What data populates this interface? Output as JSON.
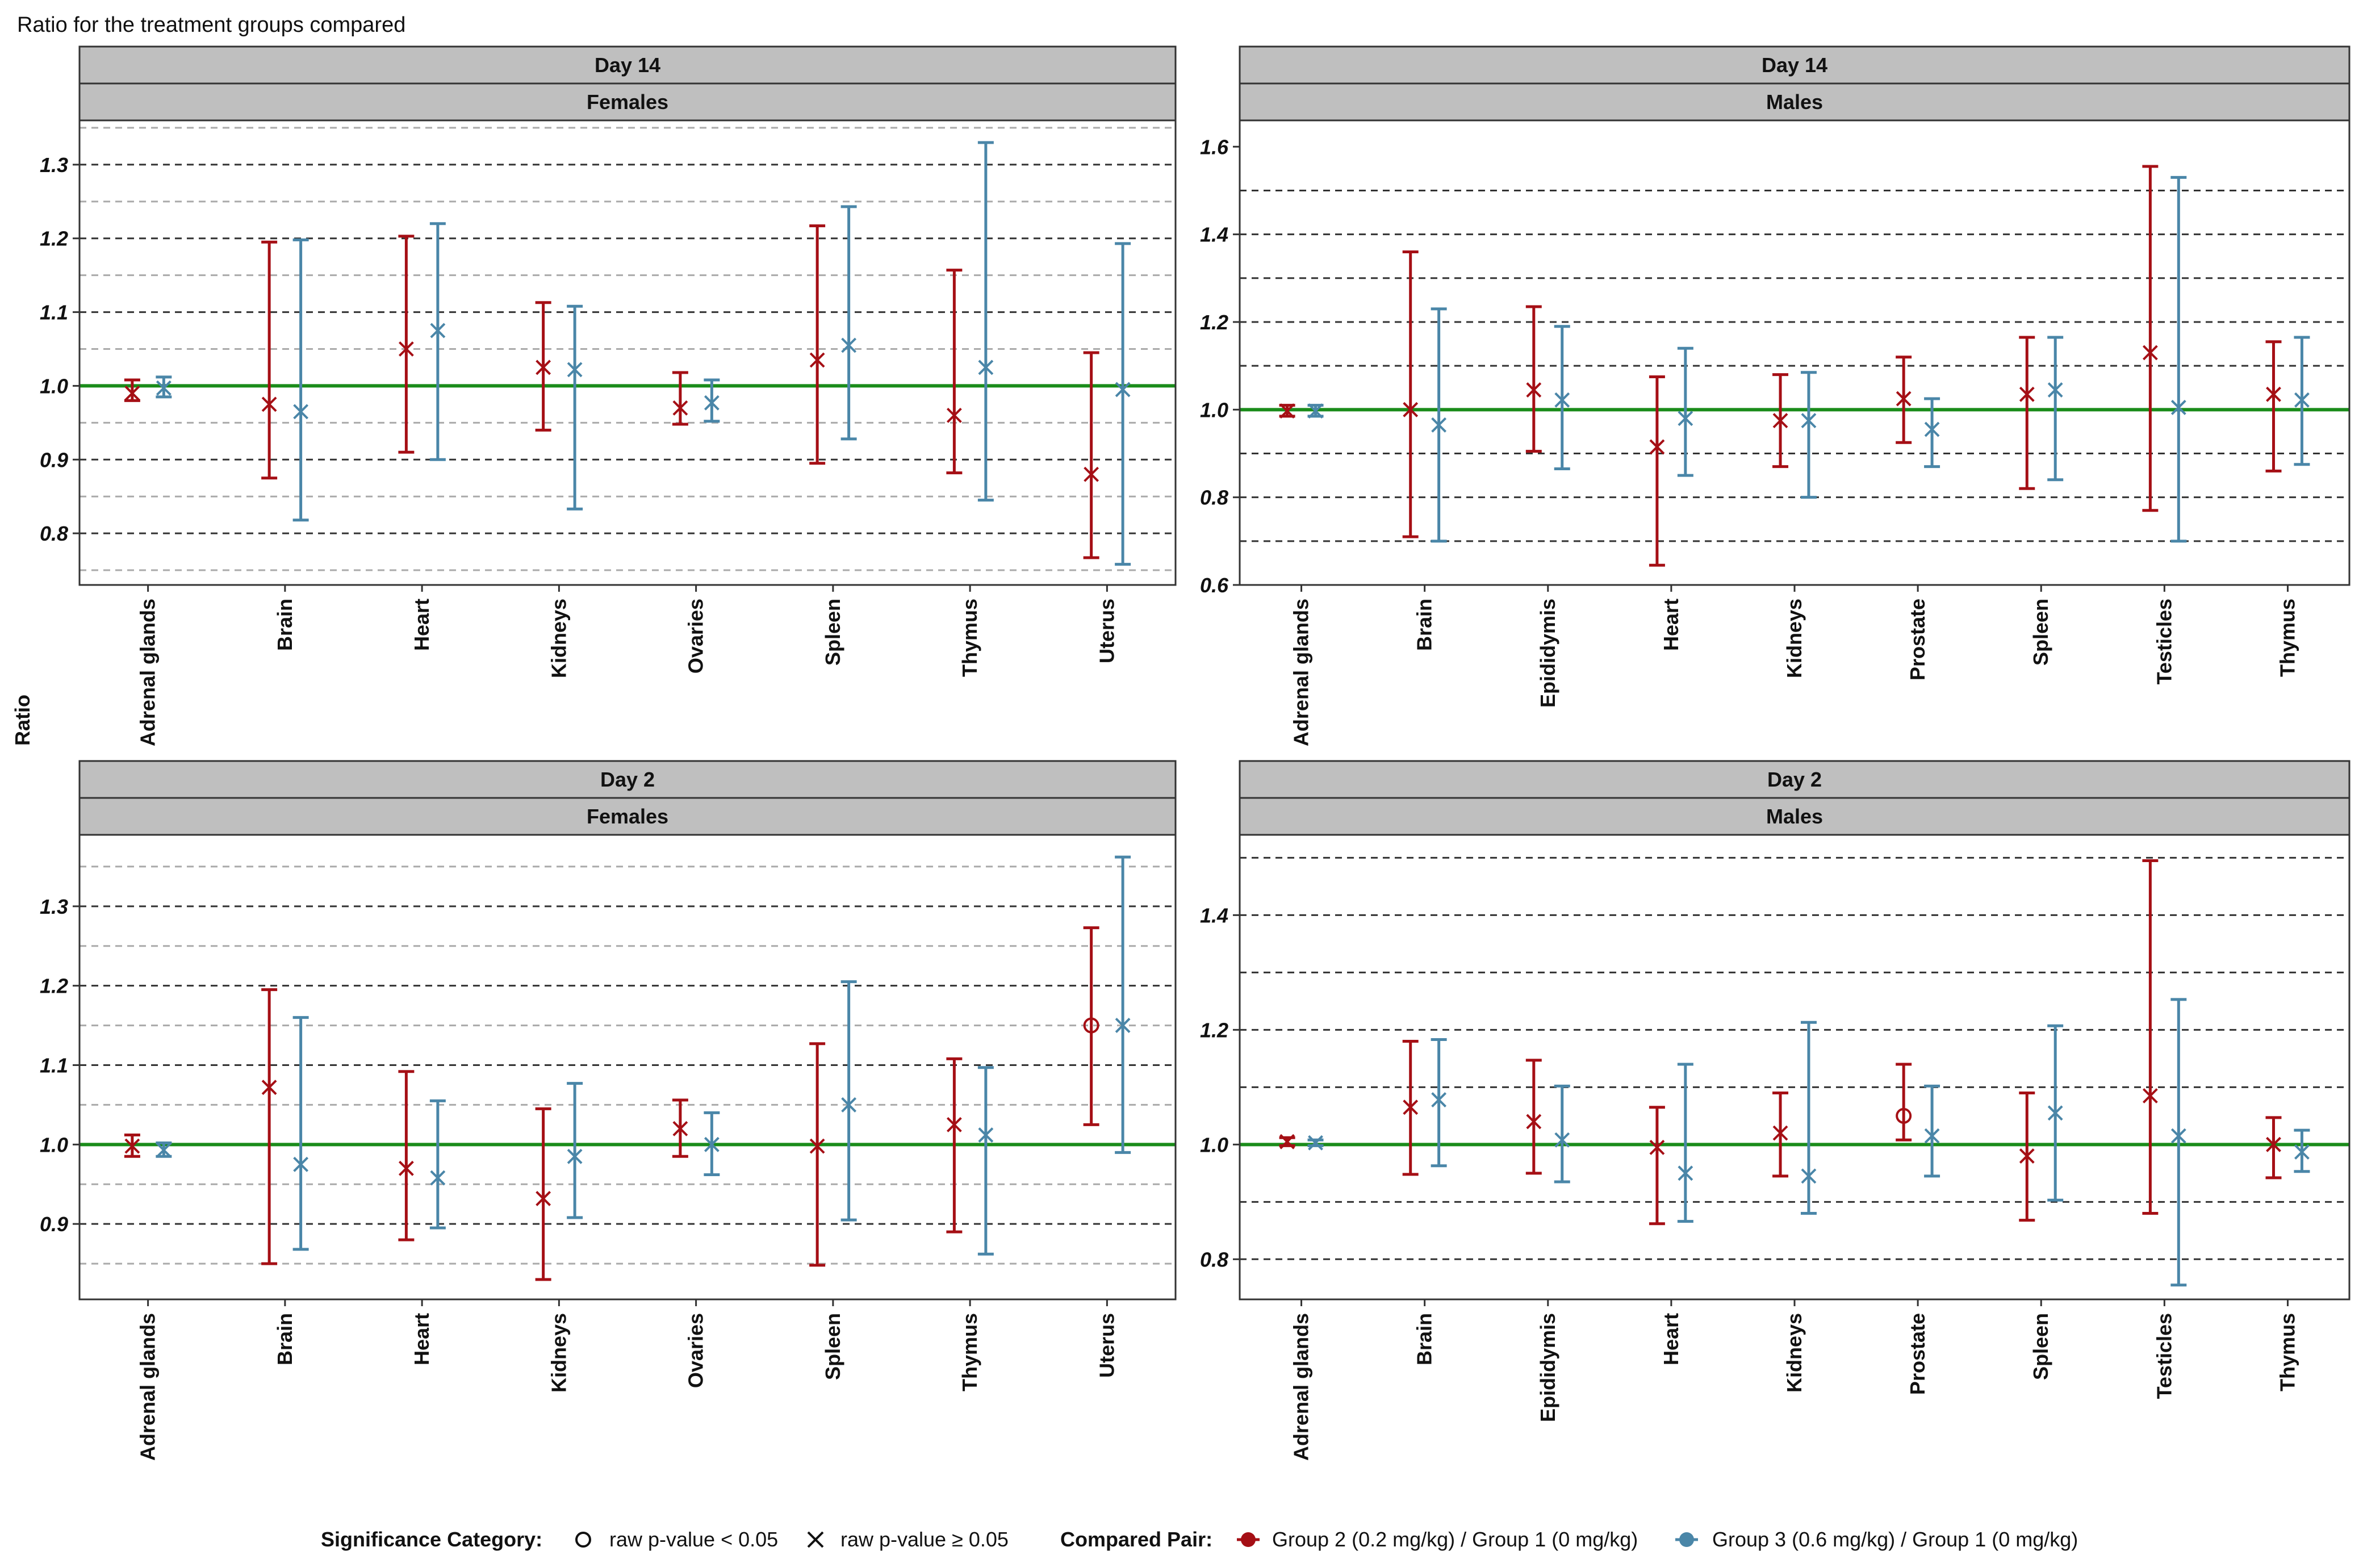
{
  "figure": {
    "title": "Ratio for the treatment groups compared",
    "ylabel": "Ratio",
    "reference_value": 1.0
  },
  "legend": {
    "significance_title": "Significance Category:",
    "sig_circle_label": "raw p-value < 0.05",
    "sig_cross_label": "raw p-value ≥ 0.05",
    "pair_title": "Compared Pair:",
    "pair_group2_label": "Group 2 (0.2 mg/kg) / Group 1 (0 mg/kg)",
    "pair_group3_label": "Group 3 (0.6 mg/kg) / Group 1 (0 mg/kg)"
  },
  "colors": {
    "group2": "#a50f15",
    "group3": "#4a86a8",
    "reference": "#1a8c1a",
    "strip": "#bfbfbf",
    "grid_major": "#333333",
    "grid_minor": "#aaaaaa"
  },
  "chart_data": [
    {
      "type": "errorbar",
      "panel": "top-left",
      "strip_top": "Day 14",
      "strip_bottom": "Females",
      "ylim": [
        0.73,
        1.36
      ],
      "yticks": [
        0.8,
        0.9,
        1.0,
        1.1,
        1.2,
        1.3
      ],
      "ytick_labels": [
        "0.8",
        "0.9",
        "1.0",
        "1.1",
        "1.2",
        "1.3"
      ],
      "dashed_lines": [
        0.75,
        0.8,
        0.85,
        0.9,
        0.95,
        1.05,
        1.1,
        1.15,
        1.2,
        1.25,
        1.3,
        1.35
      ],
      "categories": [
        "Adrenal glands",
        "Brain",
        "Heart",
        "Kidneys",
        "Ovaries",
        "Spleen",
        "Thymus",
        "Uterus"
      ],
      "series": [
        {
          "name": "Group 2 (0.2 mg/kg) / Group 1 (0 mg/kg)",
          "color_key": "group2",
          "values": [
            0.99,
            0.975,
            1.05,
            1.025,
            0.97,
            1.035,
            0.96,
            0.88
          ],
          "lower": [
            0.98,
            0.875,
            0.91,
            0.94,
            0.948,
            0.895,
            0.882,
            0.767
          ],
          "upper": [
            1.008,
            1.195,
            1.203,
            1.113,
            1.018,
            1.217,
            1.157,
            1.045
          ],
          "significant": [
            false,
            false,
            false,
            false,
            false,
            false,
            false,
            false
          ]
        },
        {
          "name": "Group 3 (0.6 mg/kg) / Group 1 (0 mg/kg)",
          "color_key": "group3",
          "values": [
            0.997,
            0.965,
            1.075,
            1.022,
            0.977,
            1.055,
            1.025,
            0.995
          ],
          "lower": [
            0.985,
            0.818,
            0.9,
            0.833,
            0.952,
            0.928,
            0.845,
            0.758
          ],
          "upper": [
            1.012,
            1.198,
            1.22,
            1.108,
            1.008,
            1.243,
            1.33,
            1.193
          ],
          "significant": [
            false,
            false,
            false,
            false,
            false,
            false,
            false,
            false
          ]
        }
      ]
    },
    {
      "type": "errorbar",
      "panel": "top-right",
      "strip_top": "Day 14",
      "strip_bottom": "Males",
      "ylim": [
        0.6,
        1.66
      ],
      "yticks": [
        0.6,
        0.8,
        1.0,
        1.2,
        1.4,
        1.6
      ],
      "ytick_labels": [
        "0.6",
        "0.8",
        "1.0",
        "1.2",
        "1.4",
        "1.6"
      ],
      "dashed_lines": [
        0.6,
        0.7,
        0.8,
        0.9,
        1.1,
        1.2,
        1.3,
        1.4,
        1.5
      ],
      "categories": [
        "Adrenal glands",
        "Brain",
        "Epididymis",
        "Heart",
        "Kidneys",
        "Prostate",
        "Spleen",
        "Testicles",
        "Thymus"
      ],
      "series": [
        {
          "name": "Group 2 (0.2 mg/kg) / Group 1 (0 mg/kg)",
          "color_key": "group2",
          "values": [
            0.997,
            1.0,
            1.045,
            0.915,
            0.975,
            1.025,
            1.035,
            1.13,
            1.035
          ],
          "lower": [
            0.985,
            0.71,
            0.905,
            0.645,
            0.87,
            0.925,
            0.82,
            0.77,
            0.86
          ],
          "upper": [
            1.01,
            1.36,
            1.235,
            1.075,
            1.08,
            1.12,
            1.165,
            1.555,
            1.155
          ],
          "significant": [
            false,
            false,
            false,
            false,
            false,
            false,
            false,
            false,
            false
          ]
        },
        {
          "name": "Group 3 (0.6 mg/kg) / Group 1 (0 mg/kg)",
          "color_key": "group3",
          "values": [
            0.997,
            0.965,
            1.022,
            0.98,
            0.975,
            0.955,
            1.045,
            1.005,
            1.022
          ],
          "lower": [
            0.985,
            0.7,
            0.865,
            0.85,
            0.8,
            0.87,
            0.84,
            0.7,
            0.875
          ],
          "upper": [
            1.01,
            1.23,
            1.19,
            1.14,
            1.085,
            1.025,
            1.165,
            1.53,
            1.165
          ],
          "significant": [
            false,
            false,
            false,
            false,
            false,
            false,
            false,
            false,
            false
          ]
        }
      ]
    },
    {
      "type": "errorbar",
      "panel": "bottom-left",
      "strip_top": "Day 2",
      "strip_bottom": "Females",
      "ylim": [
        0.805,
        1.39
      ],
      "yticks": [
        0.9,
        1.0,
        1.1,
        1.2,
        1.3
      ],
      "ytick_labels": [
        "0.9",
        "1.0",
        "1.1",
        "1.2",
        "1.3"
      ],
      "dashed_lines": [
        0.85,
        0.9,
        0.95,
        1.05,
        1.1,
        1.15,
        1.2,
        1.25,
        1.3,
        1.35
      ],
      "categories": [
        "Adrenal glands",
        "Brain",
        "Heart",
        "Kidneys",
        "Ovaries",
        "Spleen",
        "Thymus",
        "Uterus"
      ],
      "series": [
        {
          "name": "Group 2 (0.2 mg/kg) / Group 1 (0 mg/kg)",
          "color_key": "group2",
          "values": [
            0.998,
            1.072,
            0.97,
            0.932,
            1.02,
            0.998,
            1.025,
            1.15
          ],
          "lower": [
            0.985,
            0.85,
            0.88,
            0.83,
            0.985,
            0.848,
            0.89,
            1.025
          ],
          "upper": [
            1.012,
            1.195,
            1.092,
            1.045,
            1.056,
            1.127,
            1.108,
            1.273
          ],
          "significant": [
            false,
            false,
            false,
            false,
            false,
            false,
            false,
            true
          ]
        },
        {
          "name": "Group 3 (0.6 mg/kg) / Group 1 (0 mg/kg)",
          "color_key": "group3",
          "values": [
            0.993,
            0.975,
            0.958,
            0.985,
            1.0,
            1.05,
            1.012,
            1.15
          ],
          "lower": [
            0.985,
            0.868,
            0.895,
            0.908,
            0.962,
            0.905,
            0.862,
            0.99
          ],
          "upper": [
            1.002,
            1.16,
            1.055,
            1.077,
            1.04,
            1.205,
            1.097,
            1.362
          ],
          "significant": [
            false,
            false,
            false,
            false,
            false,
            false,
            false,
            false
          ]
        }
      ]
    },
    {
      "type": "errorbar",
      "panel": "bottom-right",
      "strip_top": "Day 2",
      "strip_bottom": "Males",
      "ylim": [
        0.73,
        1.54
      ],
      "yticks": [
        0.8,
        1.0,
        1.2,
        1.4
      ],
      "ytick_labels": [
        "0.8",
        "1.0",
        "1.2",
        "1.4"
      ],
      "dashed_lines": [
        0.8,
        0.9,
        1.1,
        1.2,
        1.3,
        1.4,
        1.5
      ],
      "categories": [
        "Adrenal glands",
        "Brain",
        "Epididymis",
        "Heart",
        "Kidneys",
        "Prostate",
        "Spleen",
        "Testicles",
        "Thymus"
      ],
      "series": [
        {
          "name": "Group 2 (0.2 mg/kg) / Group 1 (0 mg/kg)",
          "color_key": "group2",
          "values": [
            1.005,
            1.065,
            1.04,
            0.995,
            1.02,
            1.05,
            0.98,
            1.085,
            1.0
          ],
          "lower": [
            0.998,
            0.948,
            0.95,
            0.862,
            0.945,
            1.008,
            0.868,
            0.88,
            0.942
          ],
          "upper": [
            1.012,
            1.18,
            1.147,
            1.065,
            1.09,
            1.14,
            1.09,
            1.495,
            1.047
          ],
          "significant": [
            false,
            false,
            false,
            false,
            false,
            true,
            false,
            false,
            false
          ]
        },
        {
          "name": "Group 3 (0.6 mg/kg) / Group 1 (0 mg/kg)",
          "color_key": "group3",
          "values": [
            1.003,
            1.078,
            1.008,
            0.95,
            0.945,
            1.015,
            1.055,
            1.015,
            0.987
          ],
          "lower": [
            0.998,
            0.963,
            0.935,
            0.866,
            0.88,
            0.945,
            0.903,
            0.755,
            0.953
          ],
          "upper": [
            1.008,
            1.183,
            1.102,
            1.14,
            1.213,
            1.102,
            1.207,
            1.253,
            1.025
          ],
          "significant": [
            false,
            false,
            false,
            false,
            false,
            false,
            false,
            false,
            false
          ]
        }
      ]
    }
  ]
}
